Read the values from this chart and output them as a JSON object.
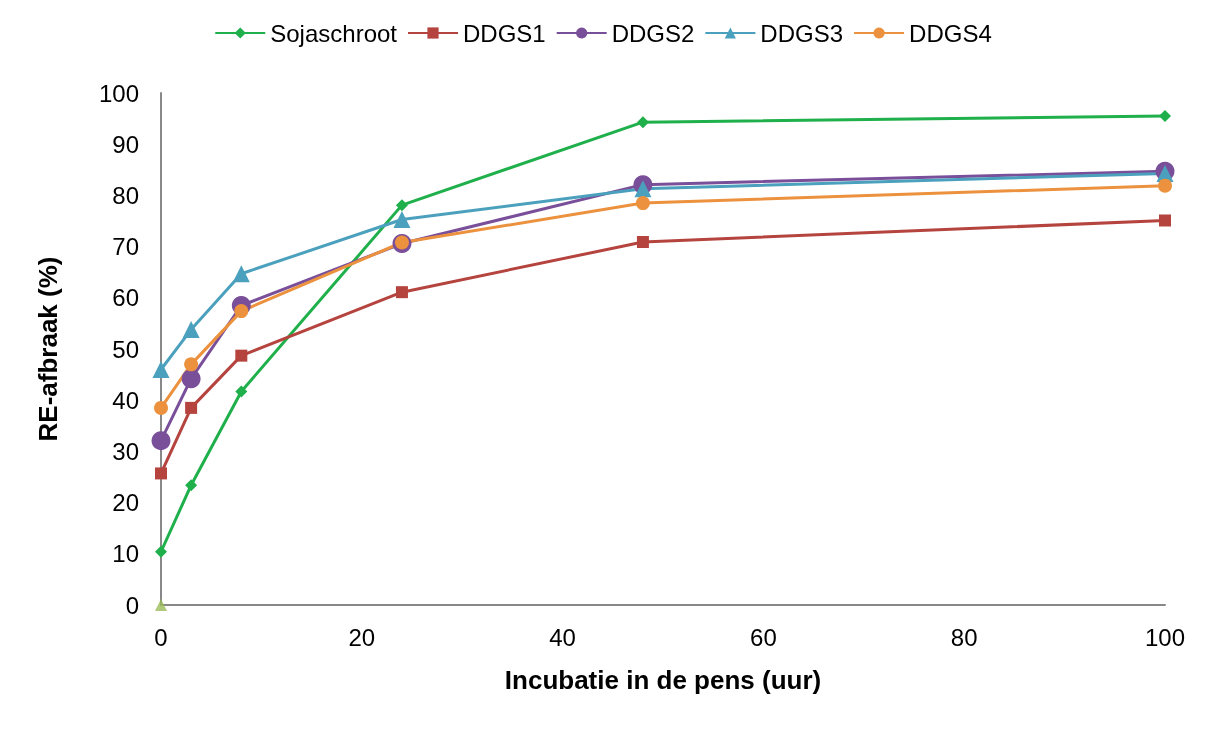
{
  "chart_data": {
    "type": "line",
    "xlabel": "Incubatie in de pens (uur)",
    "ylabel": "RE-afbraak (%)",
    "x": [
      0,
      3,
      8,
      24,
      48,
      100
    ],
    "xlim": [
      0,
      100
    ],
    "xticks": [
      0,
      20,
      40,
      60,
      80,
      100
    ],
    "ylim": [
      0,
      100
    ],
    "yticks": [
      0,
      10,
      20,
      30,
      40,
      50,
      60,
      70,
      80,
      90,
      100
    ],
    "grid": false,
    "legend": "top",
    "series": [
      {
        "name": "Sojaschroot",
        "color": "#1fb04b",
        "marker": "diamond",
        "values": [
          10.4,
          23.4,
          41.7,
          78.1,
          94.3,
          95.5
        ]
      },
      {
        "name": "DDGS1",
        "color": "#b5443f",
        "marker": "square",
        "values": [
          25.7,
          38.5,
          48.7,
          61.1,
          70.9,
          75.1
        ]
      },
      {
        "name": "DDGS2",
        "color": "#7a4f9a",
        "marker": "circle",
        "values": [
          32.1,
          44.2,
          58.5,
          70.6,
          82.1,
          84.7
        ]
      },
      {
        "name": "DDGS3",
        "color": "#4ba1bd",
        "marker": "triangle",
        "values": [
          46,
          53.8,
          64.7,
          75.3,
          81.3,
          84.3
        ]
      },
      {
        "name": "DDGS4",
        "color": "#ec913e",
        "marker": "circle",
        "values": [
          38.5,
          47,
          57.4,
          70.8,
          78.5,
          81.9
        ]
      },
      {
        "type": "scatter",
        "color": "#9bbb59",
        "marker": "triangle",
        "x": [
          0
        ],
        "values": [
          0
        ]
      }
    ]
  }
}
